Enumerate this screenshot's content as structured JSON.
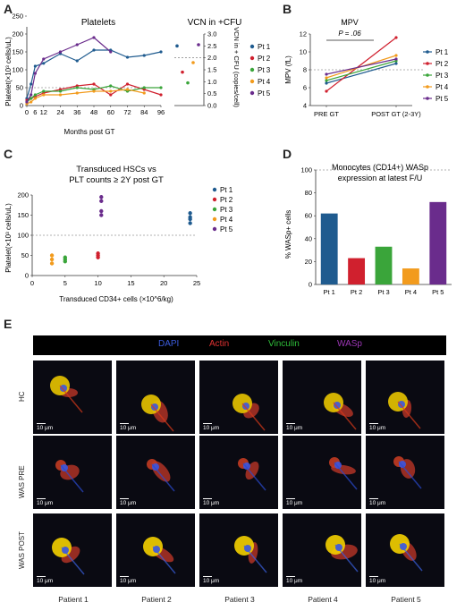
{
  "panels": {
    "A": {
      "letter": "A",
      "title_left": "Platelets",
      "title_right": "VCN in +CFU",
      "ylabel_left": "Platelet(×10³ cells/uL)",
      "ylabel_right": "VCN in + CFU (copies/cell)",
      "xlabel": "Months post GT",
      "x_ticks": [
        "0",
        "12",
        "24",
        "36",
        "48",
        "60",
        "72",
        "84",
        "96"
      ],
      "x_ticks_extra": [
        "6"
      ],
      "y_ticks": [
        "0",
        "50",
        "100",
        "150",
        "200",
        "250"
      ],
      "y2_ticks": [
        "0.0",
        "0.5",
        "1.0",
        "1.5",
        "2.0",
        "2.5",
        "3.0"
      ],
      "legend": [
        "Pt 1",
        "Pt 2",
        "Pt 3",
        "Pt 4",
        "Pt 5"
      ]
    },
    "B": {
      "letter": "B",
      "title": "MPV",
      "pvalue": "P = .06",
      "ylabel": "MPV (fL)",
      "x_ticks": [
        "PRE GT",
        "POST GT (2-3Y)"
      ],
      "y_ticks": [
        "4",
        "6",
        "8",
        "10",
        "12"
      ],
      "legend": [
        "Pt 1",
        "Pt 2",
        "Pt 3",
        "Pt 4",
        "Pt 5"
      ]
    },
    "C": {
      "letter": "C",
      "title_line1": "Transduced HSCs vs",
      "title_line2": "PLT counts ≥ 2Y post GT",
      "ylabel": "Platelet(×10³ cells/uL)",
      "xlabel": "Transduced CD34+ cells (×10^6/kg)",
      "x_ticks": [
        "0",
        "5",
        "10",
        "15",
        "20",
        "25"
      ],
      "y_ticks": [
        "0",
        "50",
        "100",
        "150",
        "200"
      ],
      "legend": [
        "Pt 1",
        "Pt 2",
        "Pt 3",
        "Pt 4",
        "Pt 5"
      ]
    },
    "D": {
      "letter": "D",
      "title_line1": "Monocytes (CD14+) WASp",
      "title_line2": "expression at latest F/U",
      "ylabel": "% WASp+ cells",
      "y_ticks": [
        "0",
        "20",
        "40",
        "60",
        "80",
        "100"
      ]
    },
    "E": {
      "letter": "E",
      "header": [
        {
          "label": "DAPI",
          "color": "#3b5bdb"
        },
        {
          "label": "Actin",
          "color": "#e03131"
        },
        {
          "label": "Vinculin",
          "color": "#2fbf3a"
        },
        {
          "label": "WASp",
          "color": "#9c36b5"
        }
      ],
      "rows": [
        "HC",
        "WAS PRE",
        "WAS POST"
      ],
      "cols": [
        "Patient 1",
        "Patient 2",
        "Patient 3",
        "Patient 4",
        "Patient 5"
      ],
      "scale_label": "10 μm"
    }
  },
  "colors": {
    "Pt 1": "#1f5b8f",
    "Pt 2": "#d0202e",
    "Pt 3": "#3aa53a",
    "Pt 4": "#f29b1d",
    "Pt 5": "#6a2c8c"
  },
  "chart_data": [
    {
      "type": "line",
      "panel": "A-left",
      "title": "Platelets",
      "xlabel": "Months post GT",
      "ylabel": "Platelet(×10³ cells/uL)",
      "xlim": [
        0,
        96
      ],
      "ylim": [
        0,
        200
      ],
      "reference_line": 50,
      "series": [
        {
          "name": "Pt 1",
          "x": [
            0,
            3,
            6,
            12,
            24,
            36,
            48,
            60,
            72,
            84,
            96
          ],
          "y": [
            20,
            60,
            110,
            118,
            145,
            125,
            155,
            155,
            135,
            140,
            150
          ]
        },
        {
          "name": "Pt 2",
          "x": [
            0,
            3,
            6,
            12,
            24,
            36,
            48,
            60,
            72,
            84,
            96
          ],
          "y": [
            15,
            20,
            25,
            35,
            45,
            55,
            60,
            30,
            60,
            45,
            30
          ]
        },
        {
          "name": "Pt 3",
          "x": [
            0,
            3,
            6,
            12,
            24,
            36,
            48,
            60,
            72,
            84,
            96
          ],
          "y": [
            10,
            20,
            30,
            40,
            40,
            50,
            45,
            55,
            40,
            50,
            50
          ]
        },
        {
          "name": "Pt 4",
          "x": [
            0,
            3,
            6,
            12,
            24,
            36,
            48,
            60,
            72,
            84
          ],
          "y": [
            5,
            10,
            20,
            30,
            30,
            35,
            40,
            40,
            45,
            35
          ]
        },
        {
          "name": "Pt 5",
          "x": [
            0,
            3,
            6,
            12,
            24,
            36,
            48,
            60
          ],
          "y": [
            10,
            30,
            90,
            130,
            150,
            170,
            190,
            150
          ]
        }
      ]
    },
    {
      "type": "scatter",
      "panel": "A-right",
      "title": "VCN in +CFU",
      "ylabel": "VCN in + CFU (copies/cell)",
      "ylim": [
        0,
        3
      ],
      "reference_line": 2.0,
      "series": [
        {
          "name": "Pt 1",
          "x": [
            1
          ],
          "y": [
            2.5
          ]
        },
        {
          "name": "Pt 2",
          "x": [
            2
          ],
          "y": [
            1.4
          ]
        },
        {
          "name": "Pt 3",
          "x": [
            3
          ],
          "y": [
            0.95
          ]
        },
        {
          "name": "Pt 4",
          "x": [
            4
          ],
          "y": [
            1.8
          ]
        },
        {
          "name": "Pt 5",
          "x": [
            5
          ],
          "y": [
            2.55
          ]
        }
      ]
    },
    {
      "type": "line",
      "panel": "B",
      "title": "MPV",
      "ylabel": "MPV (fL)",
      "categories": [
        "PRE GT",
        "POST GT (2-3Y)"
      ],
      "ylim": [
        4,
        12
      ],
      "reference_line": 8,
      "series": [
        {
          "name": "Pt 1",
          "values": [
            6.5,
            8.7
          ]
        },
        {
          "name": "Pt 2",
          "values": [
            5.6,
            11.6
          ]
        },
        {
          "name": "Pt 3",
          "values": [
            6.8,
            9.0
          ]
        },
        {
          "name": "Pt 4",
          "values": [
            7.1,
            9.6
          ]
        },
        {
          "name": "Pt 5",
          "values": [
            7.5,
            9.2
          ]
        }
      ]
    },
    {
      "type": "scatter",
      "panel": "C",
      "xlabel": "Transduced CD34+ cells (×10^6/kg)",
      "ylabel": "Platelet(×10³ cells/uL)",
      "xlim": [
        0,
        25
      ],
      "ylim": [
        0,
        200
      ],
      "reference_line": 100,
      "series": [
        {
          "name": "Pt 1",
          "x": [
            24,
            24,
            24,
            24
          ],
          "y": [
            130,
            140,
            145,
            155
          ]
        },
        {
          "name": "Pt 2",
          "x": [
            10,
            10,
            10
          ],
          "y": [
            45,
            50,
            55
          ]
        },
        {
          "name": "Pt 3",
          "x": [
            5,
            5,
            5
          ],
          "y": [
            35,
            40,
            45
          ]
        },
        {
          "name": "Pt 4",
          "x": [
            3,
            3,
            3
          ],
          "y": [
            30,
            40,
            50
          ]
        },
        {
          "name": "Pt 5",
          "x": [
            10.5,
            10.5,
            10.5,
            10.5
          ],
          "y": [
            150,
            160,
            185,
            195
          ]
        }
      ]
    },
    {
      "type": "bar",
      "panel": "D",
      "categories": [
        "Pt 1",
        "Pt 2",
        "Pt 3",
        "Pt 4",
        "Pt 5"
      ],
      "values": [
        62,
        23,
        33,
        14,
        72
      ],
      "ylabel": "% WASp+ cells",
      "ylim": [
        0,
        100
      ],
      "reference_line": 100
    }
  ]
}
